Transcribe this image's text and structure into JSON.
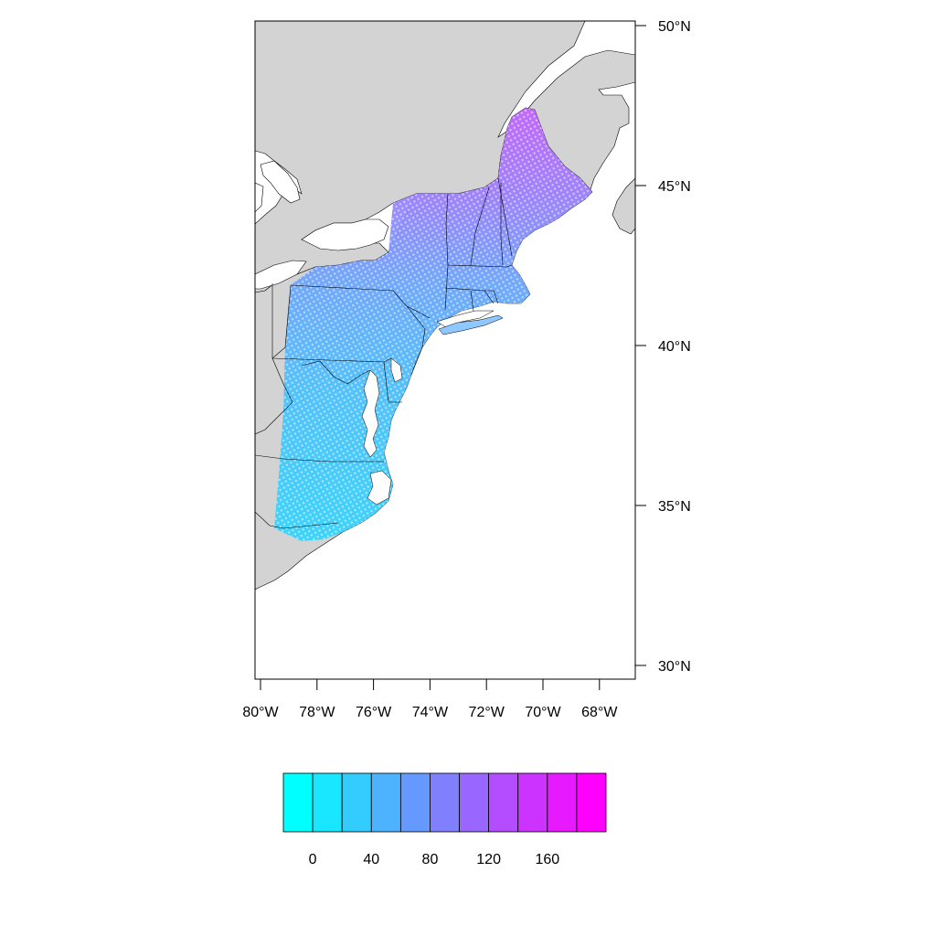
{
  "map": {
    "land_color": "#d3d3d3",
    "water_color": "#ffffff",
    "border_color": "#000000",
    "lat_ticks": [
      "50°N",
      "45°N",
      "40°N",
      "35°N",
      "30°N"
    ],
    "lon_ticks": [
      "80°W",
      "78°W",
      "76°W",
      "74°W",
      "72°W",
      "70°W",
      "68°W"
    ],
    "extent": {
      "lon": [
        -80.2,
        -66.9
      ],
      "lat": [
        29.5,
        50.1
      ]
    }
  },
  "colorbar": {
    "colors": [
      "#00ffff",
      "#19e6ff",
      "#33ccff",
      "#4db3ff",
      "#6699ff",
      "#8080ff",
      "#9966ff",
      "#b34dff",
      "#cc33ff",
      "#e619ff",
      "#ff00ff"
    ],
    "tick_labels": [
      "0",
      "40",
      "80",
      "120",
      "160"
    ],
    "tick_values": [
      0,
      40,
      80,
      120,
      160
    ],
    "range": [
      -20,
      200
    ]
  },
  "chart_data": {
    "type": "heatmap",
    "description_hidden": true,
    "value_gradient": [
      {
        "lat": 35,
        "value": 10
      },
      {
        "lat": 38,
        "value": 25
      },
      {
        "lat": 41,
        "value": 45
      },
      {
        "lat": 43,
        "value": 80
      },
      {
        "lat": 45,
        "value": 115
      },
      {
        "lat": 47,
        "value": 150
      }
    ]
  }
}
